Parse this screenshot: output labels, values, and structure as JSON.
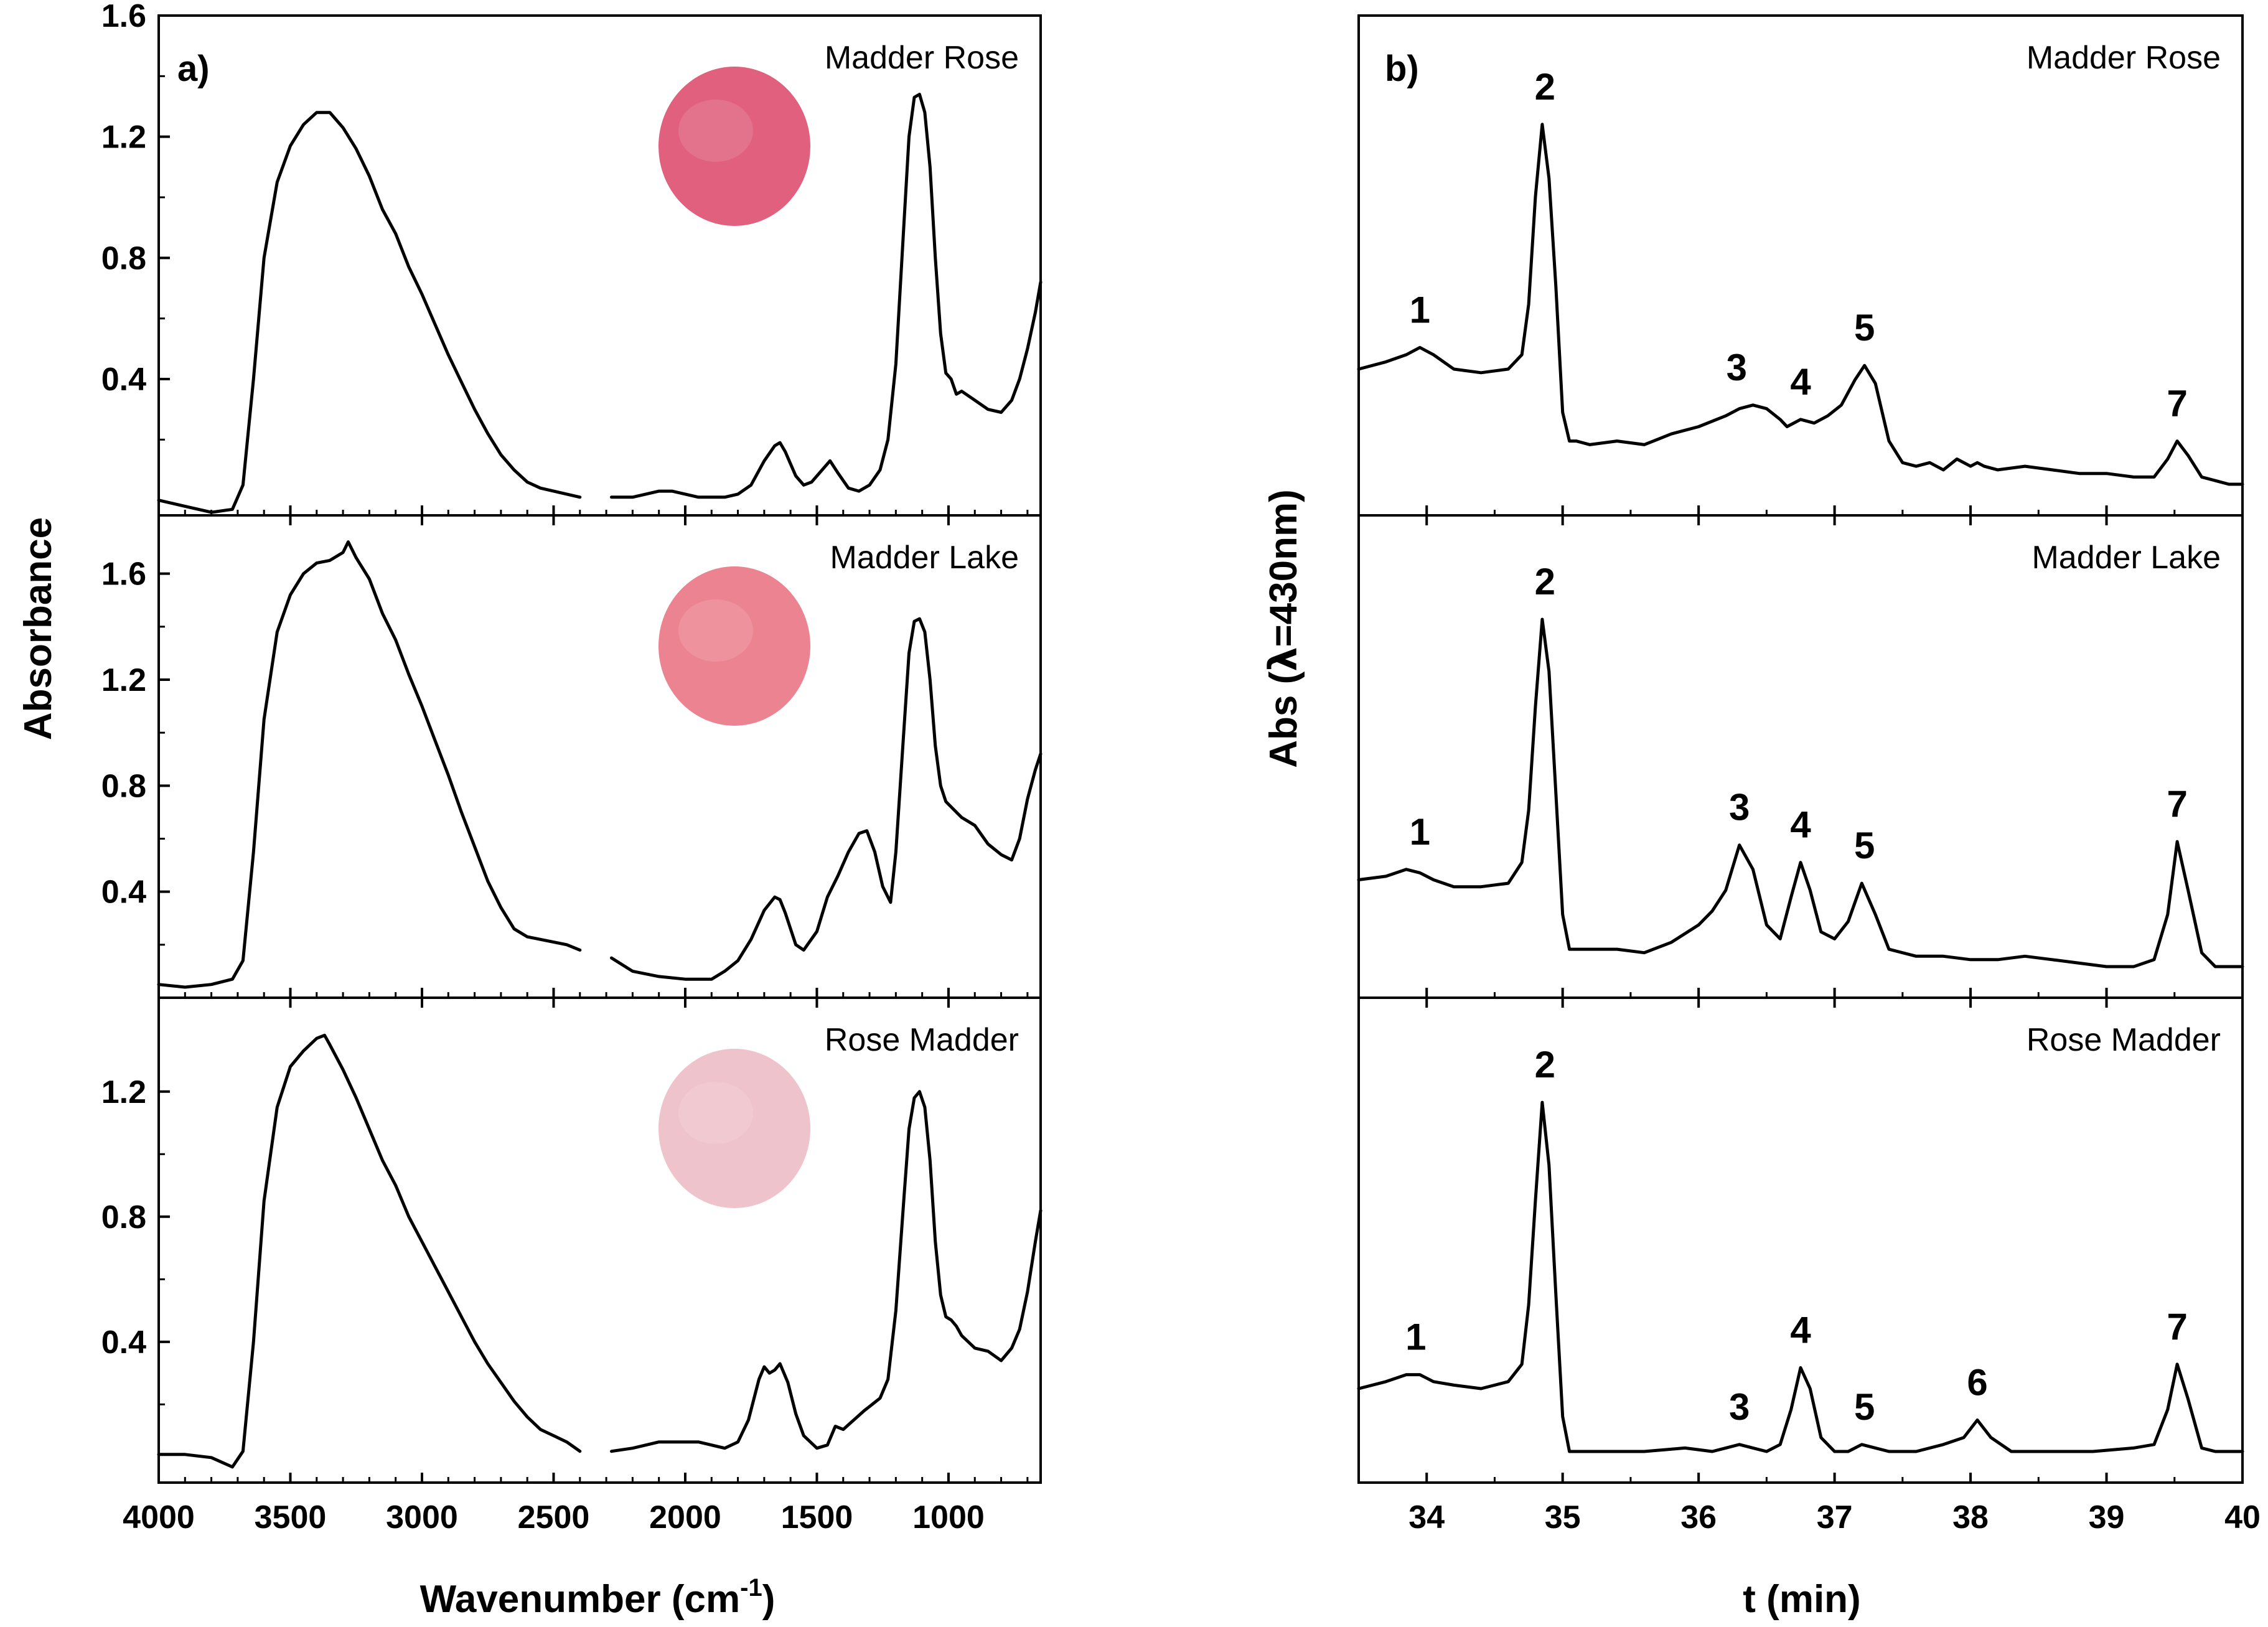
{
  "chart_data": [
    {
      "id": "a",
      "type": "line",
      "panel_letter": "a)",
      "xlabel_main": "Wavenumber (cm",
      "xlabel_sup": "-1",
      "xlabel_tail": ")",
      "ylabel": "Absorbance",
      "xlim": [
        4000,
        650
      ],
      "xticks": [
        4000,
        3500,
        3000,
        2500,
        2000,
        1500,
        1000
      ],
      "xtick_labels": [
        "4000",
        "3500",
        "3000",
        "2500",
        "2000",
        "1500",
        "1000"
      ],
      "gap": [
        2400,
        2280
      ],
      "subplots": [
        {
          "label": "Madder Rose",
          "swatch_color": "#e0607e",
          "ylim": [
            -0.05,
            1.6
          ],
          "yticks": [
            0.4,
            0.8,
            1.2,
            1.6
          ],
          "ytick_labels": [
            "0.4",
            "0.8",
            "1.2",
            "1.6"
          ],
          "x": [
            4000,
            3900,
            3800,
            3720,
            3680,
            3640,
            3600,
            3550,
            3500,
            3450,
            3400,
            3350,
            3300,
            3250,
            3200,
            3150,
            3100,
            3050,
            3000,
            2950,
            2900,
            2850,
            2800,
            2750,
            2700,
            2650,
            2600,
            2550,
            2500,
            2450,
            2400,
            2280,
            2200,
            2100,
            2050,
            2000,
            1950,
            1900,
            1850,
            1800,
            1750,
            1700,
            1660,
            1640,
            1620,
            1580,
            1550,
            1520,
            1480,
            1450,
            1420,
            1380,
            1340,
            1300,
            1260,
            1230,
            1200,
            1170,
            1150,
            1130,
            1110,
            1090,
            1070,
            1050,
            1030,
            1010,
            990,
            970,
            950,
            900,
            850,
            800,
            760,
            730,
            700,
            670,
            650
          ],
          "y": [
            0.0,
            -0.02,
            -0.04,
            -0.03,
            0.05,
            0.4,
            0.8,
            1.05,
            1.17,
            1.24,
            1.28,
            1.28,
            1.23,
            1.16,
            1.07,
            0.96,
            0.88,
            0.77,
            0.68,
            0.58,
            0.48,
            0.39,
            0.3,
            0.22,
            0.15,
            0.1,
            0.06,
            0.04,
            0.03,
            0.02,
            0.01,
            0.01,
            0.01,
            0.03,
            0.03,
            0.02,
            0.01,
            0.01,
            0.01,
            0.02,
            0.05,
            0.13,
            0.18,
            0.19,
            0.16,
            0.08,
            0.05,
            0.06,
            0.1,
            0.13,
            0.09,
            0.04,
            0.03,
            0.05,
            0.1,
            0.2,
            0.45,
            0.9,
            1.2,
            1.33,
            1.34,
            1.28,
            1.1,
            0.8,
            0.55,
            0.42,
            0.4,
            0.35,
            0.36,
            0.33,
            0.3,
            0.29,
            0.33,
            0.4,
            0.5,
            0.62,
            0.72
          ]
        },
        {
          "label": "Madder Lake",
          "swatch_color": "#ec8390",
          "ylim": [
            0.0,
            1.82
          ],
          "yticks": [
            0.4,
            0.8,
            1.2,
            1.6
          ],
          "ytick_labels": [
            "0.4",
            "0.8",
            "1.2",
            "1.6"
          ],
          "x": [
            4000,
            3900,
            3800,
            3720,
            3680,
            3640,
            3600,
            3550,
            3500,
            3450,
            3400,
            3350,
            3300,
            3280,
            3250,
            3200,
            3150,
            3100,
            3050,
            3000,
            2950,
            2900,
            2850,
            2800,
            2750,
            2700,
            2650,
            2600,
            2550,
            2500,
            2450,
            2400,
            2280,
            2200,
            2100,
            2000,
            1950,
            1900,
            1850,
            1800,
            1750,
            1700,
            1660,
            1640,
            1620,
            1580,
            1550,
            1500,
            1460,
            1420,
            1380,
            1340,
            1310,
            1280,
            1250,
            1220,
            1200,
            1170,
            1150,
            1130,
            1110,
            1090,
            1070,
            1050,
            1030,
            1010,
            990,
            970,
            950,
            900,
            850,
            800,
            760,
            730,
            700,
            670,
            650
          ],
          "y": [
            0.05,
            0.04,
            0.05,
            0.07,
            0.14,
            0.55,
            1.05,
            1.38,
            1.52,
            1.6,
            1.64,
            1.65,
            1.68,
            1.72,
            1.66,
            1.58,
            1.45,
            1.35,
            1.22,
            1.1,
            0.97,
            0.84,
            0.7,
            0.57,
            0.44,
            0.34,
            0.26,
            0.23,
            0.22,
            0.21,
            0.2,
            0.18,
            0.15,
            0.1,
            0.08,
            0.07,
            0.07,
            0.07,
            0.1,
            0.14,
            0.22,
            0.33,
            0.38,
            0.37,
            0.32,
            0.2,
            0.18,
            0.25,
            0.38,
            0.46,
            0.55,
            0.62,
            0.63,
            0.55,
            0.42,
            0.36,
            0.55,
            1.0,
            1.3,
            1.42,
            1.43,
            1.38,
            1.2,
            0.95,
            0.8,
            0.74,
            0.72,
            0.7,
            0.68,
            0.65,
            0.58,
            0.54,
            0.52,
            0.6,
            0.75,
            0.86,
            0.92
          ]
        },
        {
          "label": "Rose Madder",
          "swatch_color": "#efc3cb",
          "ylim": [
            -0.05,
            1.5
          ],
          "yticks": [
            0.4,
            0.8,
            1.2
          ],
          "ytick_labels": [
            "0.4",
            "0.8",
            "1.2"
          ],
          "x": [
            4000,
            3900,
            3800,
            3720,
            3680,
            3640,
            3600,
            3550,
            3500,
            3450,
            3400,
            3370,
            3350,
            3300,
            3250,
            3200,
            3150,
            3100,
            3050,
            3000,
            2950,
            2900,
            2850,
            2800,
            2750,
            2700,
            2650,
            2600,
            2550,
            2500,
            2450,
            2400,
            2280,
            2200,
            2100,
            2000,
            1950,
            1900,
            1850,
            1800,
            1760,
            1720,
            1700,
            1680,
            1660,
            1640,
            1610,
            1580,
            1550,
            1500,
            1460,
            1430,
            1400,
            1360,
            1320,
            1290,
            1260,
            1230,
            1200,
            1170,
            1150,
            1130,
            1110,
            1090,
            1070,
            1050,
            1030,
            1010,
            990,
            970,
            950,
            900,
            850,
            800,
            760,
            730,
            700,
            670,
            650
          ],
          "y": [
            0.04,
            0.04,
            0.03,
            0.0,
            0.05,
            0.4,
            0.85,
            1.15,
            1.28,
            1.33,
            1.37,
            1.38,
            1.35,
            1.27,
            1.18,
            1.08,
            0.98,
            0.9,
            0.8,
            0.72,
            0.64,
            0.56,
            0.48,
            0.4,
            0.33,
            0.27,
            0.21,
            0.16,
            0.12,
            0.1,
            0.08,
            0.05,
            0.05,
            0.06,
            0.08,
            0.08,
            0.08,
            0.07,
            0.06,
            0.08,
            0.15,
            0.28,
            0.32,
            0.3,
            0.31,
            0.33,
            0.27,
            0.17,
            0.1,
            0.06,
            0.07,
            0.13,
            0.12,
            0.15,
            0.18,
            0.2,
            0.22,
            0.28,
            0.5,
            0.85,
            1.08,
            1.18,
            1.2,
            1.15,
            0.98,
            0.72,
            0.55,
            0.48,
            0.47,
            0.45,
            0.42,
            0.38,
            0.37,
            0.34,
            0.38,
            0.44,
            0.56,
            0.72,
            0.82
          ]
        }
      ]
    },
    {
      "id": "b",
      "type": "line",
      "panel_letter": "b)",
      "xlabel": "t (min)",
      "ylabel_main": "Abs (",
      "ylabel_symbol": "λ",
      "ylabel_tail": "=430nm)",
      "xlim": [
        33.5,
        40
      ],
      "xticks": [
        34,
        35,
        36,
        37,
        38,
        39,
        40
      ],
      "xtick_labels": [
        "34",
        "35",
        "36",
        "37",
        "38",
        "39",
        "40"
      ],
      "ylim": [
        0,
        1.0
      ],
      "subplots": [
        {
          "label": "Madder Rose",
          "x": [
            33.5,
            33.7,
            33.85,
            33.95,
            34.05,
            34.2,
            34.4,
            34.6,
            34.7,
            34.75,
            34.8,
            34.85,
            34.9,
            34.95,
            35.0,
            35.05,
            35.1,
            35.2,
            35.4,
            35.6,
            35.8,
            36.0,
            36.2,
            36.3,
            36.4,
            36.5,
            36.6,
            36.65,
            36.75,
            36.85,
            36.95,
            37.05,
            37.15,
            37.22,
            37.3,
            37.4,
            37.5,
            37.6,
            37.7,
            37.8,
            37.9,
            38.0,
            38.05,
            38.1,
            38.2,
            38.4,
            38.6,
            38.8,
            39.0,
            39.2,
            39.35,
            39.45,
            39.52,
            39.6,
            39.7,
            39.8,
            39.9,
            40.0
          ],
          "y": [
            0.32,
            0.34,
            0.36,
            0.38,
            0.36,
            0.32,
            0.31,
            0.32,
            0.36,
            0.5,
            0.8,
            1.0,
            0.85,
            0.55,
            0.2,
            0.12,
            0.12,
            0.11,
            0.12,
            0.11,
            0.14,
            0.16,
            0.19,
            0.21,
            0.22,
            0.21,
            0.18,
            0.16,
            0.18,
            0.17,
            0.19,
            0.22,
            0.29,
            0.33,
            0.28,
            0.12,
            0.06,
            0.05,
            0.06,
            0.04,
            0.07,
            0.05,
            0.06,
            0.05,
            0.04,
            0.05,
            0.04,
            0.03,
            0.03,
            0.02,
            0.02,
            0.07,
            0.12,
            0.08,
            0.02,
            0.01,
            0.0,
            0.0
          ],
          "peaks": [
            {
              "label": "1",
              "t": 33.95,
              "y": 0.38
            },
            {
              "label": "2",
              "t": 34.87,
              "y": 1.0
            },
            {
              "label": "3",
              "t": 36.28,
              "y": 0.22
            },
            {
              "label": "4",
              "t": 36.75,
              "y": 0.18
            },
            {
              "label": "5",
              "t": 37.22,
              "y": 0.33
            },
            {
              "label": "7",
              "t": 39.52,
              "y": 0.12
            }
          ]
        },
        {
          "label": "Madder Lake",
          "x": [
            33.5,
            33.7,
            33.85,
            33.95,
            34.05,
            34.2,
            34.4,
            34.6,
            34.7,
            34.75,
            34.8,
            34.85,
            34.9,
            34.95,
            35.0,
            35.05,
            35.1,
            35.2,
            35.4,
            35.6,
            35.8,
            36.0,
            36.1,
            36.2,
            36.3,
            36.4,
            36.5,
            36.6,
            36.68,
            36.75,
            36.82,
            36.9,
            37.0,
            37.1,
            37.2,
            37.3,
            37.4,
            37.6,
            37.8,
            38.0,
            38.2,
            38.4,
            38.6,
            38.8,
            39.0,
            39.2,
            39.35,
            39.45,
            39.52,
            39.6,
            39.7,
            39.8,
            39.9,
            40.0
          ],
          "y": [
            0.25,
            0.26,
            0.28,
            0.27,
            0.25,
            0.23,
            0.23,
            0.24,
            0.3,
            0.45,
            0.75,
            1.0,
            0.85,
            0.5,
            0.15,
            0.05,
            0.05,
            0.05,
            0.05,
            0.04,
            0.07,
            0.12,
            0.16,
            0.22,
            0.35,
            0.28,
            0.12,
            0.08,
            0.2,
            0.3,
            0.22,
            0.1,
            0.08,
            0.13,
            0.24,
            0.15,
            0.05,
            0.03,
            0.03,
            0.02,
            0.02,
            0.03,
            0.02,
            0.01,
            0.0,
            0.0,
            0.02,
            0.15,
            0.36,
            0.22,
            0.04,
            0.0,
            0.0,
            0.0
          ],
          "peaks": [
            {
              "label": "1",
              "t": 33.95,
              "y": 0.28
            },
            {
              "label": "2",
              "t": 34.87,
              "y": 1.0
            },
            {
              "label": "3",
              "t": 36.3,
              "y": 0.35
            },
            {
              "label": "4",
              "t": 36.75,
              "y": 0.3
            },
            {
              "label": "5",
              "t": 37.22,
              "y": 0.24
            },
            {
              "label": "7",
              "t": 39.52,
              "y": 0.36
            }
          ]
        },
        {
          "label": "Rose Madder",
          "x": [
            33.5,
            33.7,
            33.85,
            33.95,
            34.05,
            34.2,
            34.4,
            34.6,
            34.7,
            34.75,
            34.8,
            34.85,
            34.9,
            34.95,
            35.0,
            35.05,
            35.1,
            35.3,
            35.6,
            35.9,
            36.1,
            36.2,
            36.3,
            36.4,
            36.5,
            36.6,
            36.68,
            36.75,
            36.82,
            36.9,
            37.0,
            37.1,
            37.2,
            37.3,
            37.4,
            37.6,
            37.8,
            37.95,
            38.05,
            38.15,
            38.3,
            38.6,
            38.9,
            39.2,
            39.35,
            39.45,
            39.52,
            39.6,
            39.7,
            39.8,
            39.9,
            40.0
          ],
          "y": [
            0.18,
            0.2,
            0.22,
            0.22,
            0.2,
            0.19,
            0.18,
            0.2,
            0.25,
            0.42,
            0.72,
            1.0,
            0.82,
            0.45,
            0.1,
            0.0,
            0.0,
            0.0,
            0.0,
            0.01,
            0.0,
            0.01,
            0.02,
            0.01,
            0.0,
            0.02,
            0.12,
            0.24,
            0.18,
            0.04,
            0.0,
            0.0,
            0.02,
            0.01,
            0.0,
            0.0,
            0.02,
            0.04,
            0.09,
            0.04,
            0.0,
            0.0,
            0.0,
            0.01,
            0.02,
            0.12,
            0.25,
            0.15,
            0.01,
            0.0,
            0.0,
            0.0
          ],
          "peaks": [
            {
              "label": "1",
              "t": 33.92,
              "y": 0.22
            },
            {
              "label": "2",
              "t": 34.87,
              "y": 1.0
            },
            {
              "label": "3",
              "t": 36.3,
              "y": 0.02
            },
            {
              "label": "4",
              "t": 36.75,
              "y": 0.24
            },
            {
              "label": "5",
              "t": 37.22,
              "y": 0.02
            },
            {
              "label": "6",
              "t": 38.05,
              "y": 0.09
            },
            {
              "label": "7",
              "t": 39.52,
              "y": 0.25
            }
          ]
        }
      ]
    }
  ]
}
